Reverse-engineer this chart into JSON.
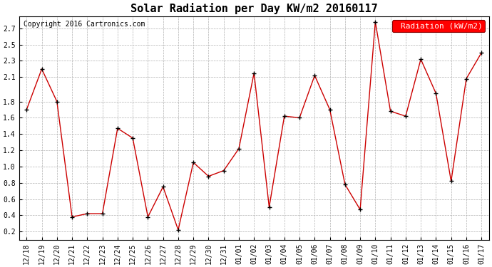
{
  "title": "Solar Radiation per Day KW/m2 20160117",
  "copyright_text": "Copyright 2016 Cartronics.com",
  "legend_label": "Radiation (kW/m2)",
  "x_labels": [
    "12/18",
    "12/19",
    "12/20",
    "12/21",
    "12/22",
    "12/23",
    "12/24",
    "12/25",
    "12/26",
    "12/27",
    "12/28",
    "12/29",
    "12/30",
    "12/31",
    "01/01",
    "01/02",
    "01/03",
    "01/04",
    "01/05",
    "01/06",
    "01/07",
    "01/08",
    "01/09",
    "01/10",
    "01/11",
    "01/12",
    "01/13",
    "01/14",
    "01/15",
    "01/16",
    "01/17"
  ],
  "y_values": [
    1.7,
    2.2,
    1.8,
    0.38,
    0.42,
    0.42,
    1.47,
    1.35,
    0.38,
    0.75,
    0.22,
    1.05,
    0.88,
    0.95,
    1.22,
    2.15,
    0.5,
    1.62,
    1.6,
    2.12,
    1.7,
    0.78,
    0.47,
    2.78,
    1.68,
    1.62,
    2.32,
    1.9,
    0.82,
    2.08,
    2.4
  ],
  "line_color": "#cc0000",
  "marker_color": "#000000",
  "background_color": "#ffffff",
  "plot_bg_color": "#ffffff",
  "grid_color": "#b0b0b0",
  "ylim": [
    0.1,
    2.85
  ],
  "yticks": [
    0.2,
    0.4,
    0.6,
    0.8,
    1.0,
    1.2,
    1.4,
    1.6,
    1.8,
    2.1,
    2.3,
    2.5,
    2.7
  ],
  "title_fontsize": 11,
  "tick_fontsize": 7,
  "legend_fontsize": 8,
  "copyright_fontsize": 7
}
